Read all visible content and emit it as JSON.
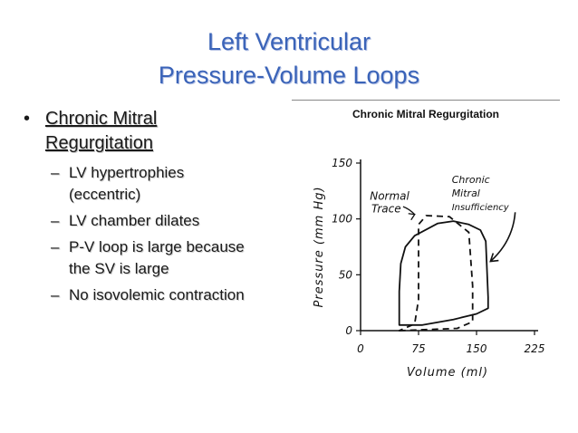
{
  "slide": {
    "title_line1": "Left Ventricular",
    "title_line2": "Pressure-Volume Loops"
  },
  "bullets": {
    "main": "Chronic Mitral Regurgitation",
    "main_line1": "Chronic Mitral",
    "main_line2": "Regurgitation",
    "sub": [
      {
        "line1": "LV hypertrophies",
        "line2": "(eccentric)"
      },
      {
        "line1": "LV chamber dilates",
        "line2": ""
      },
      {
        "line1": "P-V loop is large because",
        "line2": "the SV is large"
      },
      {
        "line1": "No isovolemic contraction",
        "line2": ""
      }
    ]
  },
  "chart_data": {
    "type": "line",
    "title": "Chronic Mitral Regurgitation",
    "xlabel": "Volume (ml)",
    "ylabel": "Pressure (mm Hg)",
    "xlim": [
      0,
      225
    ],
    "ylim": [
      0,
      150
    ],
    "x_ticks": [
      "0",
      "75",
      "150",
      "225"
    ],
    "y_ticks": [
      "0",
      "50",
      "100",
      "150"
    ],
    "series": [
      {
        "name": "Normal Trace",
        "style": "dashed",
        "points": [
          [
            50,
            0
          ],
          [
            125,
            2
          ],
          [
            145,
            8
          ],
          [
            145,
            40
          ],
          [
            140,
            88
          ],
          [
            115,
            102
          ],
          [
            85,
            103
          ],
          [
            75,
            95
          ],
          [
            75,
            28
          ],
          [
            70,
            6
          ],
          [
            50,
            0
          ]
        ]
      },
      {
        "name": "Chronic Mitral Insufficiency",
        "style": "solid",
        "points": [
          [
            50,
            5
          ],
          [
            80,
            5
          ],
          [
            120,
            10
          ],
          [
            150,
            15
          ],
          [
            165,
            20
          ],
          [
            165,
            30
          ],
          [
            162,
            80
          ],
          [
            155,
            90
          ],
          [
            140,
            95
          ],
          [
            120,
            98
          ],
          [
            100,
            96
          ],
          [
            70,
            85
          ],
          [
            58,
            75
          ],
          [
            52,
            60
          ],
          [
            50,
            35
          ],
          [
            50,
            5
          ]
        ]
      }
    ],
    "annotations": {
      "normal_label_1": "Normal",
      "normal_label_2": "Trace",
      "cmi_label_1": "Chronic",
      "cmi_label_2": "Mitral",
      "cmi_label_3": "Insufficiency"
    },
    "grid": false,
    "legend": "none"
  }
}
